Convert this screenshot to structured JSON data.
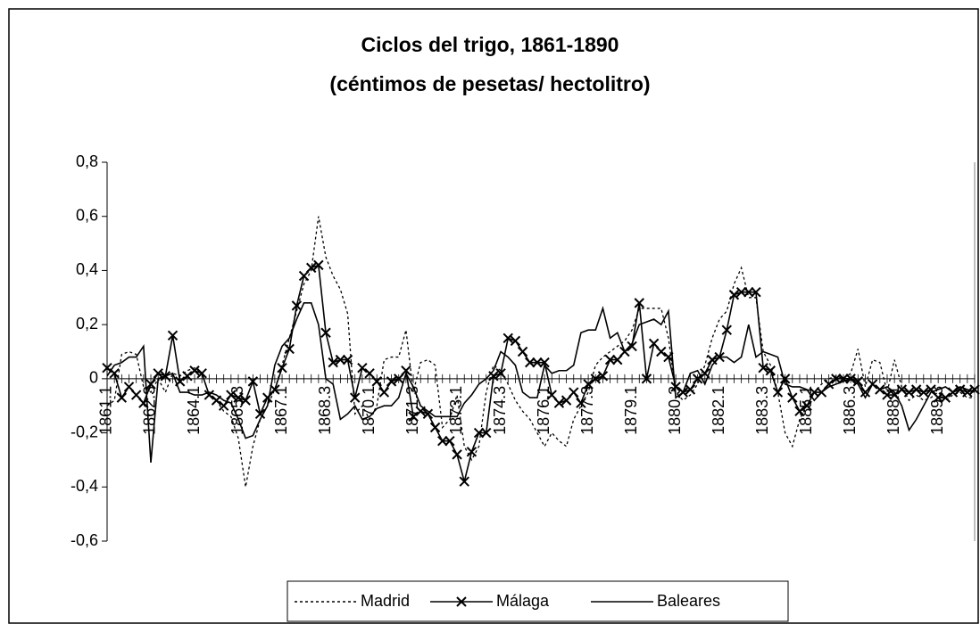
{
  "chart_data": {
    "type": "line",
    "title": [
      "Ciclos del trigo, 1861-1890",
      "(céntimos de pesetas/ hectolitro)"
    ],
    "categories": [
      "1861.1",
      null,
      null,
      null,
      null,
      null,
      "1862.3",
      null,
      null,
      null,
      null,
      null,
      "1864.1",
      null,
      null,
      null,
      null,
      null,
      "1865.3",
      null,
      null,
      null,
      null,
      null,
      "1867.1",
      null,
      null,
      null,
      null,
      null,
      "1868.3",
      null,
      null,
      null,
      null,
      null,
      "1870.1",
      null,
      null,
      null,
      null,
      null,
      "1871.3",
      null,
      null,
      null,
      null,
      null,
      "1873.1",
      null,
      null,
      null,
      null,
      null,
      "1874.3",
      null,
      null,
      null,
      null,
      null,
      "1876.1",
      null,
      null,
      null,
      null,
      null,
      "1877.3",
      null,
      null,
      null,
      null,
      null,
      "1879.1",
      null,
      null,
      null,
      null,
      null,
      "1880.3",
      null,
      null,
      null,
      null,
      null,
      "1882.1",
      null,
      null,
      null,
      null,
      null,
      "1883.3",
      null,
      null,
      null,
      null,
      null,
      "1885.1",
      null,
      null,
      null,
      null,
      null,
      "1886.3",
      null,
      null,
      null,
      null,
      null,
      "1888.1",
      null,
      null,
      null,
      null,
      null,
      "1889.3",
      null,
      null,
      null,
      null,
      null
    ],
    "series": [
      {
        "name": "Madrid",
        "color": "#000000",
        "line_style": "dotted",
        "marker": "none",
        "values": [
          -0.1,
          -0.08,
          0.09,
          0.1,
          0.09,
          -0.03,
          -0.05,
          0.0,
          -0.05,
          0.02,
          0.01,
          0.03,
          0.04,
          0.02,
          -0.06,
          -0.08,
          -0.12,
          -0.14,
          -0.22,
          -0.4,
          -0.25,
          -0.15,
          -0.1,
          -0.04,
          0.05,
          0.15,
          0.25,
          0.35,
          0.4,
          0.6,
          0.45,
          0.38,
          0.33,
          0.24,
          -0.13,
          -0.1,
          -0.15,
          -0.1,
          0.07,
          0.08,
          0.08,
          0.18,
          -0.05,
          0.06,
          0.07,
          0.05,
          -0.18,
          -0.15,
          -0.06,
          -0.25,
          -0.3,
          -0.25,
          -0.05,
          0.05,
          0.03,
          -0.02,
          -0.08,
          -0.12,
          -0.15,
          -0.2,
          -0.25,
          -0.2,
          -0.23,
          -0.25,
          -0.15,
          -0.1,
          -0.05,
          0.05,
          0.08,
          0.1,
          0.12,
          0.14,
          0.18,
          0.26,
          0.26,
          0.26,
          0.26,
          0.15,
          -0.05,
          -0.08,
          -0.06,
          -0.02,
          0.05,
          0.15,
          0.22,
          0.25,
          0.35,
          0.41,
          0.3,
          0.3,
          0.1,
          0.05,
          -0.05,
          -0.2,
          -0.25,
          -0.15,
          -0.1,
          -0.05,
          -0.02,
          0.0,
          0.01,
          0.0,
          0.02,
          0.11,
          -0.03,
          0.07,
          0.06,
          -0.05,
          0.07,
          -0.03,
          -0.08,
          -0.06,
          -0.08,
          -0.07,
          -0.05,
          -0.08,
          -0.06,
          -0.05,
          -0.07,
          -0.07
        ]
      },
      {
        "name": "Málaga",
        "color": "#000000",
        "line_style": "solid",
        "marker": "x",
        "values": [
          0.04,
          0.02,
          -0.07,
          -0.03,
          -0.06,
          -0.09,
          -0.02,
          0.02,
          0.01,
          0.16,
          -0.01,
          0.01,
          0.03,
          0.02,
          -0.06,
          -0.08,
          -0.1,
          -0.06,
          -0.07,
          -0.08,
          -0.01,
          -0.13,
          -0.07,
          -0.04,
          0.04,
          0.11,
          0.27,
          0.38,
          0.41,
          0.42,
          0.17,
          0.06,
          0.07,
          0.07,
          -0.07,
          0.04,
          0.02,
          -0.01,
          -0.05,
          -0.01,
          0.0,
          0.03,
          -0.14,
          -0.12,
          -0.13,
          -0.18,
          -0.23,
          -0.23,
          -0.28,
          -0.38,
          -0.27,
          -0.2,
          -0.2,
          0.01,
          0.02,
          0.15,
          0.14,
          0.1,
          0.06,
          0.06,
          0.06,
          -0.06,
          -0.09,
          -0.08,
          -0.05,
          -0.09,
          -0.02,
          0.0,
          0.01,
          0.07,
          0.07,
          0.1,
          0.12,
          0.28,
          0.0,
          0.13,
          0.1,
          0.08,
          -0.03,
          -0.05,
          -0.04,
          0.0,
          0.02,
          0.07,
          0.08,
          0.18,
          0.31,
          0.32,
          0.32,
          0.32,
          0.04,
          0.03,
          -0.05,
          0.0,
          -0.07,
          -0.12,
          -0.1,
          -0.05,
          -0.05,
          -0.02,
          0.0,
          0.0,
          0.0,
          -0.01,
          -0.05,
          -0.02,
          -0.04,
          -0.06,
          -0.06,
          -0.04,
          -0.05,
          -0.04,
          -0.05,
          -0.04,
          -0.07,
          -0.07,
          -0.05,
          -0.04,
          -0.05,
          -0.04
        ]
      },
      {
        "name": "Baleares",
        "color": "#000000",
        "line_style": "solid",
        "marker": "none",
        "values": [
          0.01,
          0.05,
          0.06,
          0.08,
          0.08,
          0.12,
          -0.31,
          0.0,
          0.01,
          0.02,
          -0.05,
          -0.05,
          -0.06,
          -0.06,
          -0.05,
          -0.06,
          -0.08,
          -0.09,
          -0.15,
          -0.22,
          -0.21,
          -0.15,
          -0.1,
          0.05,
          0.12,
          0.15,
          0.22,
          0.28,
          0.28,
          0.2,
          0.0,
          -0.02,
          -0.15,
          -0.13,
          -0.1,
          -0.15,
          -0.14,
          -0.11,
          -0.1,
          -0.1,
          -0.07,
          0.02,
          -0.03,
          -0.1,
          -0.12,
          -0.14,
          -0.14,
          -0.14,
          -0.14,
          -0.09,
          -0.06,
          -0.02,
          0.0,
          0.03,
          0.1,
          0.08,
          0.05,
          -0.05,
          -0.07,
          -0.07,
          0.05,
          0.02,
          0.03,
          0.03,
          0.05,
          0.17,
          0.18,
          0.18,
          0.26,
          0.15,
          0.17,
          0.1,
          0.13,
          0.2,
          0.21,
          0.22,
          0.2,
          0.25,
          -0.07,
          -0.05,
          0.02,
          0.03,
          -0.02,
          0.05,
          0.08,
          0.08,
          0.06,
          0.08,
          0.2,
          0.08,
          0.1,
          0.09,
          0.08,
          -0.02,
          -0.03,
          -0.03,
          -0.04,
          -0.08,
          -0.05,
          -0.03,
          -0.02,
          -0.01,
          0.0,
          -0.02,
          -0.07,
          -0.02,
          -0.04,
          -0.03,
          -0.05,
          -0.1,
          -0.19,
          -0.15,
          -0.1,
          -0.05,
          -0.04,
          -0.03,
          -0.05,
          -0.03,
          -0.04,
          -0.05
        ]
      }
    ],
    "ylim": [
      -0.6,
      0.8
    ],
    "yticks": [
      {
        "value": -0.6,
        "label": "-0,6"
      },
      {
        "value": -0.4,
        "label": "-0,4"
      },
      {
        "value": -0.2,
        "label": "-0,2"
      },
      0,
      {
        "value": 0.2,
        "label": "0,2"
      },
      {
        "value": 0.4,
        "label": "0,4"
      },
      {
        "value": 0.6,
        "label": "0,6"
      },
      {
        "value": 0.8,
        "label": "0,8"
      }
    ],
    "grid": false,
    "legend": "bottom"
  }
}
